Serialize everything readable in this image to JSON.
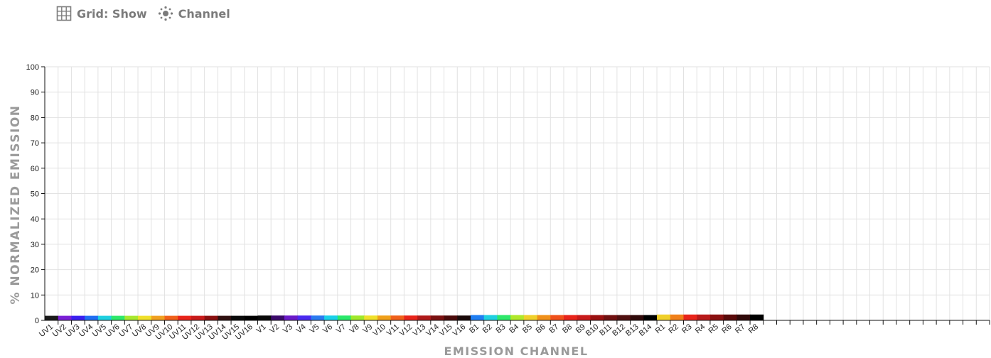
{
  "toolbar": {
    "grid_label": "Grid: Show",
    "grid_icon": "grid-icon",
    "channel_label": "Channel",
    "channel_icon": "sun-dots-icon"
  },
  "colors": {
    "grid": "#e2e2e2",
    "axis": "#111111",
    "label": "#9a9a9a"
  },
  "chart_data": {
    "type": "bar",
    "title": "",
    "xlabel": "EMISSION CHANNEL",
    "ylabel": "% NORMALIZED EMISSION",
    "ylim": [
      0,
      100
    ],
    "yticks": [
      0,
      10,
      20,
      30,
      40,
      50,
      60,
      70,
      80,
      90,
      100
    ],
    "grid": true,
    "total_slots": 71,
    "categories": [
      "UV1",
      "UV2",
      "UV3",
      "UV4",
      "UV5",
      "UV6",
      "UV7",
      "UV8",
      "UV9",
      "UV10",
      "UV11",
      "UV12",
      "UV13",
      "UV14",
      "UV15",
      "UV16",
      "V1",
      "V2",
      "V3",
      "V4",
      "V5",
      "V6",
      "V7",
      "V8",
      "V9",
      "V10",
      "V11",
      "V12",
      "V13",
      "V14",
      "V15",
      "V16",
      "B1",
      "B2",
      "B3",
      "B4",
      "B5",
      "B6",
      "B7",
      "B8",
      "B9",
      "B10",
      "B11",
      "B12",
      "B13",
      "B14",
      "R1",
      "R2",
      "R3",
      "R4",
      "R5",
      "R6",
      "R7",
      "R8"
    ],
    "values": [
      1.8,
      1.8,
      1.8,
      1.8,
      1.8,
      1.8,
      1.8,
      1.8,
      1.8,
      1.8,
      1.8,
      1.8,
      1.8,
      1.8,
      1.8,
      1.8,
      1.9,
      1.9,
      1.9,
      1.9,
      1.9,
      1.9,
      1.9,
      1.9,
      1.9,
      1.9,
      1.9,
      1.9,
      1.9,
      1.9,
      1.9,
      1.9,
      2.1,
      2.1,
      2.1,
      2.1,
      2.1,
      2.1,
      2.1,
      2.1,
      2.1,
      2.1,
      2.1,
      2.1,
      2.1,
      2.1,
      2.3,
      2.3,
      2.3,
      2.3,
      2.3,
      2.3,
      2.3,
      2.3
    ],
    "bar_colors": [
      "#1a1a1a",
      "#7a1fd6",
      "#3a1ff0",
      "#1f6ef2",
      "#1fd0e0",
      "#2ee86a",
      "#a8e82e",
      "#f0e02a",
      "#f0a020",
      "#f0601a",
      "#e8241a",
      "#c81a1a",
      "#8a1010",
      "#301010",
      "#0a0a0a",
      "#000000",
      "#0a0a0a",
      "#3a0a6a",
      "#6a1ac8",
      "#4a2af0",
      "#2a7af0",
      "#1ad0e8",
      "#2ae86a",
      "#a0e82a",
      "#f0e02a",
      "#f0a01a",
      "#f0601a",
      "#e8241a",
      "#b01a1a",
      "#7a1010",
      "#4a0a0a",
      "#1a0a0a",
      "#1f7ef2",
      "#1fd0e0",
      "#2ee86a",
      "#b0e82a",
      "#f0d02a",
      "#f0901a",
      "#f0501a",
      "#e8241a",
      "#c81a1a",
      "#9a1010",
      "#701010",
      "#501010",
      "#300a0a",
      "#000000",
      "#f0d02a",
      "#f0801a",
      "#e8241a",
      "#b81a1a",
      "#8a1010",
      "#5a0a0a",
      "#300a0a",
      "#000000"
    ]
  }
}
